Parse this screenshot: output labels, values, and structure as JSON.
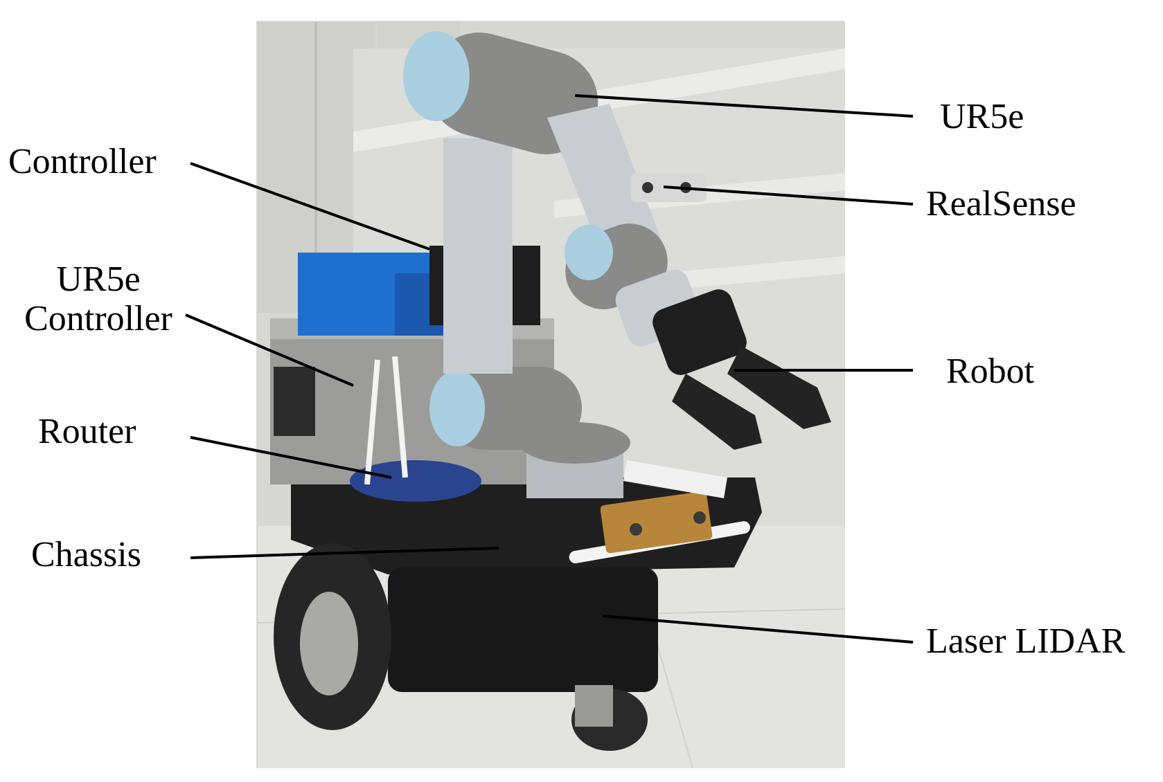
{
  "labels": {
    "controller": "Controller",
    "ur5e_controller_line1": "UR5e",
    "ur5e_controller_line2": "Controller",
    "router": "Router",
    "chassis": "Chassis",
    "ur5e": "UR5e",
    "realsense": "RealSense",
    "robot": "Robot",
    "laser_lidar": "Laser LIDAR"
  },
  "colors": {
    "background_wall": "#d9d9d6",
    "arm_gray": "#8a8a88",
    "arm_silver": "#c9ccd0",
    "joint_blue": "#a9cfe0",
    "battery_blue": "#1f6fd0",
    "chassis_black": "#1c1c1c",
    "floor": "#e2e2df",
    "lidar_gold": "#b8863b"
  }
}
